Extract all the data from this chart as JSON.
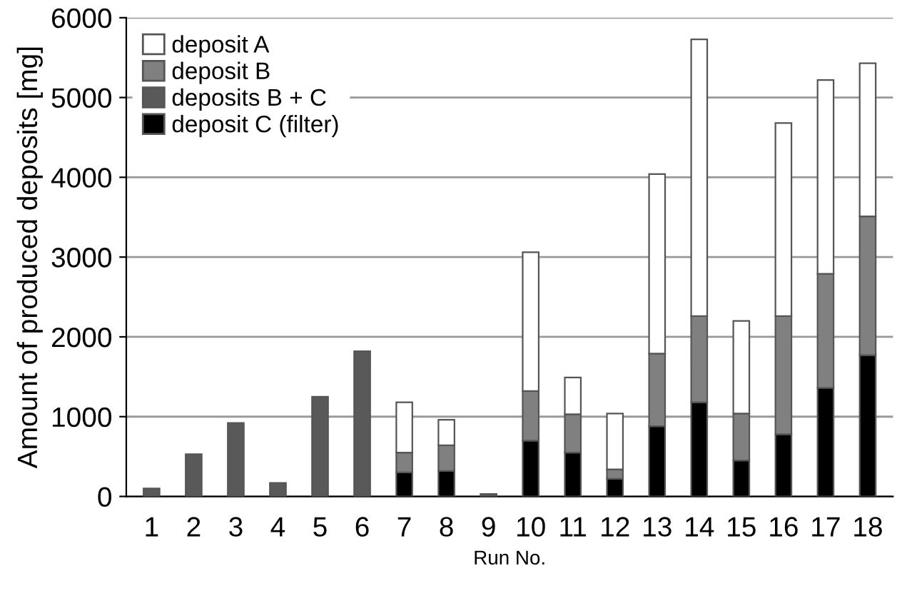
{
  "chart_data": {
    "type": "bar",
    "stacked": true,
    "xlabel": "Run No.",
    "ylabel": "Amount of produced deposits [mg]",
    "categories": [
      "1",
      "2",
      "3",
      "4",
      "5",
      "6",
      "7",
      "8",
      "9",
      "10",
      "11",
      "12",
      "13",
      "14",
      "15",
      "16",
      "17",
      "18"
    ],
    "series": [
      {
        "name": "deposit C (filter)",
        "color": "#000000",
        "values": [
          null,
          null,
          null,
          null,
          null,
          null,
          300,
          320,
          null,
          700,
          550,
          220,
          880,
          1180,
          450,
          780,
          1360,
          1770
        ]
      },
      {
        "name": "deposits B + C",
        "color": "#595959",
        "values": [
          100,
          530,
          920,
          170,
          1250,
          1820,
          null,
          null,
          30,
          null,
          null,
          null,
          null,
          null,
          null,
          null,
          null,
          null
        ]
      },
      {
        "name": "deposit B",
        "color": "#808080",
        "values": [
          null,
          null,
          null,
          null,
          null,
          null,
          250,
          320,
          null,
          620,
          480,
          120,
          910,
          1080,
          590,
          1480,
          1430,
          1740
        ]
      },
      {
        "name": "deposit A",
        "color": "#ffffff",
        "values": [
          null,
          null,
          null,
          null,
          null,
          null,
          630,
          320,
          null,
          1740,
          460,
          700,
          2250,
          3470,
          1160,
          2420,
          2430,
          1920
        ]
      }
    ],
    "ylim": [
      0,
      6000
    ],
    "yticks": [
      0,
      1000,
      2000,
      3000,
      4000,
      5000,
      6000
    ],
    "grid": "y",
    "legend": "top left"
  }
}
